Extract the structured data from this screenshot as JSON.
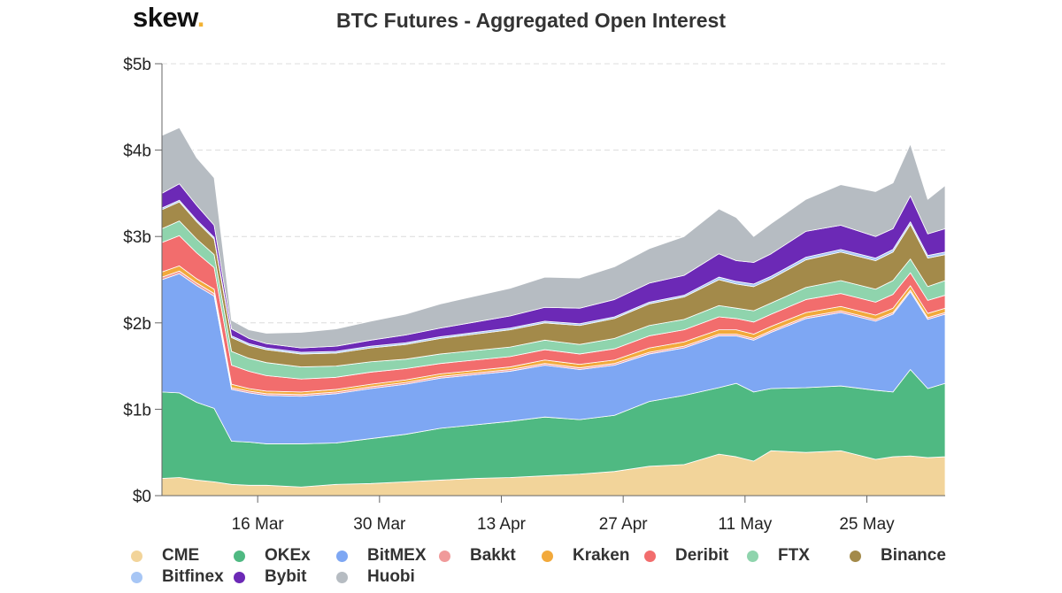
{
  "logo": {
    "text": "skew",
    "dot": "."
  },
  "chart_data": {
    "type": "area",
    "stacked": true,
    "title": "BTC Futures - Aggregated Open Interest",
    "xlabel": "",
    "ylabel": "",
    "ylim": [
      0,
      5
    ],
    "y_unit": "billions USD",
    "y_ticks": [
      "$0",
      "$1b",
      "$2b",
      "$3b",
      "$4b",
      "$5b"
    ],
    "x_start_day": 6,
    "x_end_day": 96,
    "x_ticks": [
      {
        "label": "16 Mar",
        "day": 17
      },
      {
        "label": "30 Mar",
        "day": 31
      },
      {
        "label": "13 Apr",
        "day": 45
      },
      {
        "label": "27 Apr",
        "day": 59
      },
      {
        "label": "11 May",
        "day": 73
      },
      {
        "label": "25 May",
        "day": 87
      }
    ],
    "x_days": [
      6,
      8,
      10,
      12,
      14,
      16,
      18,
      22,
      26,
      30,
      34,
      38,
      42,
      46,
      50,
      54,
      58,
      62,
      66,
      70,
      72,
      74,
      76,
      80,
      84,
      88,
      90,
      92,
      94,
      96
    ],
    "series": [
      {
        "name": "CME",
        "color": "#f2d49a",
        "values": [
          0.2,
          0.21,
          0.18,
          0.16,
          0.13,
          0.12,
          0.12,
          0.1,
          0.13,
          0.14,
          0.16,
          0.18,
          0.2,
          0.21,
          0.23,
          0.25,
          0.28,
          0.34,
          0.36,
          0.48,
          0.45,
          0.4,
          0.52,
          0.5,
          0.52,
          0.42,
          0.45,
          0.46,
          0.44,
          0.45
        ]
      },
      {
        "name": "OKEx",
        "color": "#4fb982",
        "values": [
          1.0,
          0.98,
          0.9,
          0.85,
          0.5,
          0.5,
          0.48,
          0.5,
          0.48,
          0.52,
          0.55,
          0.6,
          0.62,
          0.65,
          0.68,
          0.63,
          0.65,
          0.75,
          0.8,
          0.77,
          0.85,
          0.8,
          0.72,
          0.75,
          0.75,
          0.8,
          0.75,
          1.0,
          0.8,
          0.85
        ]
      },
      {
        "name": "BitMEX",
        "color": "#7ea7f3",
        "values": [
          1.3,
          1.38,
          1.35,
          1.3,
          0.6,
          0.57,
          0.56,
          0.55,
          0.57,
          0.58,
          0.58,
          0.58,
          0.58,
          0.58,
          0.6,
          0.58,
          0.58,
          0.55,
          0.55,
          0.6,
          0.55,
          0.6,
          0.65,
          0.8,
          0.85,
          0.8,
          0.9,
          0.9,
          0.8,
          0.8
        ]
      },
      {
        "name": "Bakkt",
        "color": "#f09a9a",
        "values": [
          0.03,
          0.03,
          0.03,
          0.03,
          0.02,
          0.02,
          0.02,
          0.02,
          0.02,
          0.02,
          0.02,
          0.02,
          0.02,
          0.02,
          0.02,
          0.02,
          0.02,
          0.02,
          0.02,
          0.02,
          0.02,
          0.02,
          0.02,
          0.02,
          0.02,
          0.02,
          0.02,
          0.02,
          0.02,
          0.02
        ]
      },
      {
        "name": "Kraken",
        "color": "#f2a93b",
        "values": [
          0.06,
          0.06,
          0.05,
          0.05,
          0.04,
          0.03,
          0.03,
          0.03,
          0.03,
          0.03,
          0.03,
          0.03,
          0.03,
          0.03,
          0.04,
          0.04,
          0.04,
          0.05,
          0.05,
          0.05,
          0.05,
          0.05,
          0.05,
          0.05,
          0.05,
          0.05,
          0.05,
          0.05,
          0.05,
          0.05
        ]
      },
      {
        "name": "Deribit",
        "color": "#f26d6d",
        "values": [
          0.34,
          0.35,
          0.3,
          0.25,
          0.22,
          0.2,
          0.18,
          0.15,
          0.14,
          0.14,
          0.13,
          0.12,
          0.12,
          0.12,
          0.12,
          0.12,
          0.13,
          0.14,
          0.14,
          0.15,
          0.13,
          0.14,
          0.14,
          0.15,
          0.15,
          0.15,
          0.16,
          0.15,
          0.15,
          0.15
        ]
      },
      {
        "name": "FTX",
        "color": "#8fd4ad",
        "values": [
          0.16,
          0.17,
          0.16,
          0.15,
          0.16,
          0.15,
          0.15,
          0.14,
          0.13,
          0.12,
          0.11,
          0.11,
          0.11,
          0.11,
          0.11,
          0.11,
          0.12,
          0.12,
          0.12,
          0.13,
          0.12,
          0.13,
          0.13,
          0.14,
          0.15,
          0.15,
          0.16,
          0.16,
          0.16,
          0.17
        ]
      },
      {
        "name": "Binance",
        "color": "#a38a4a",
        "values": [
          0.22,
          0.22,
          0.2,
          0.18,
          0.16,
          0.15,
          0.15,
          0.15,
          0.15,
          0.16,
          0.17,
          0.18,
          0.19,
          0.2,
          0.2,
          0.22,
          0.23,
          0.25,
          0.26,
          0.3,
          0.28,
          0.28,
          0.28,
          0.32,
          0.33,
          0.33,
          0.33,
          0.4,
          0.33,
          0.3
        ]
      },
      {
        "name": "Bitfinex",
        "color": "#a7c6f5",
        "values": [
          0.02,
          0.02,
          0.02,
          0.02,
          0.02,
          0.02,
          0.02,
          0.02,
          0.02,
          0.02,
          0.02,
          0.02,
          0.02,
          0.02,
          0.02,
          0.02,
          0.02,
          0.02,
          0.02,
          0.03,
          0.03,
          0.03,
          0.03,
          0.03,
          0.03,
          0.03,
          0.03,
          0.03,
          0.03,
          0.03
        ]
      },
      {
        "name": "Bybit",
        "color": "#6c29b6",
        "values": [
          0.17,
          0.19,
          0.17,
          0.14,
          0.08,
          0.06,
          0.05,
          0.05,
          0.06,
          0.07,
          0.09,
          0.1,
          0.12,
          0.14,
          0.16,
          0.18,
          0.2,
          0.22,
          0.23,
          0.27,
          0.24,
          0.25,
          0.26,
          0.3,
          0.28,
          0.25,
          0.24,
          0.3,
          0.25,
          0.27
        ]
      },
      {
        "name": "Huobi",
        "color": "#b6bcc2",
        "values": [
          0.67,
          0.65,
          0.55,
          0.55,
          0.1,
          0.1,
          0.12,
          0.18,
          0.2,
          0.22,
          0.24,
          0.28,
          0.3,
          0.32,
          0.35,
          0.35,
          0.38,
          0.4,
          0.45,
          0.52,
          0.5,
          0.3,
          0.35,
          0.37,
          0.47,
          0.52,
          0.53,
          0.6,
          0.4,
          0.5
        ]
      }
    ]
  },
  "legend_order": [
    "CME",
    "OKEx",
    "BitMEX",
    "Bakkt",
    "Kraken",
    "Deribit",
    "FTX",
    "Binance",
    "Bitfinex",
    "Bybit",
    "Huobi"
  ]
}
